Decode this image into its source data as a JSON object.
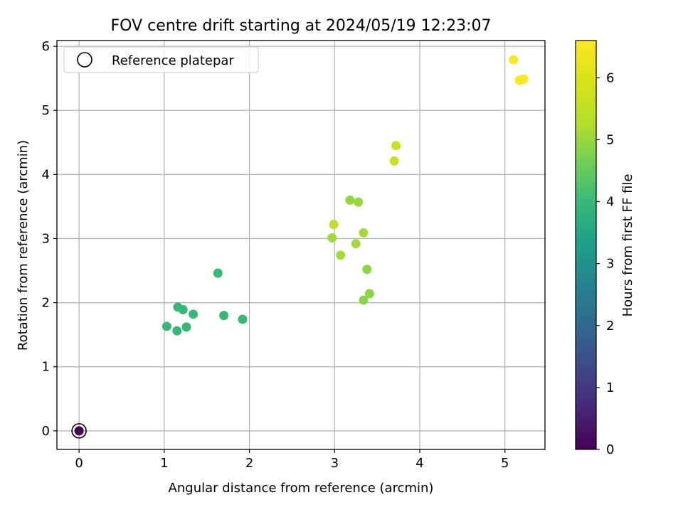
{
  "chart_data": {
    "type": "scatter",
    "title": "FOV centre drift starting at 2024/05/19 12:23:07",
    "xlabel": "Angular distance from reference (arcmin)",
    "ylabel": "Rotation from reference (arcmin)",
    "xlim": [
      -0.26,
      5.47
    ],
    "ylim": [
      -0.29,
      6.09
    ],
    "xticks": [
      0,
      1,
      2,
      3,
      4,
      5
    ],
    "yticks": [
      0,
      1,
      2,
      3,
      4,
      5,
      6
    ],
    "grid": true,
    "legend": {
      "placement": "top-left",
      "entries": [
        "Reference platepar"
      ]
    },
    "colorbar": {
      "label": "Hours from first FF file",
      "colormap": "viridis",
      "range": [
        0,
        6.6
      ],
      "ticks": [
        0,
        1,
        2,
        3,
        4,
        5,
        6
      ]
    },
    "reference_point": {
      "x": 0,
      "y": 0
    },
    "points": [
      {
        "x": 0.0,
        "y": 0.0,
        "hours": 0.0
      },
      {
        "x": 1.03,
        "y": 1.63,
        "hours": 4.0
      },
      {
        "x": 1.15,
        "y": 1.56,
        "hours": 4.0
      },
      {
        "x": 1.16,
        "y": 1.93,
        "hours": 4.0
      },
      {
        "x": 1.22,
        "y": 1.89,
        "hours": 4.0
      },
      {
        "x": 1.26,
        "y": 1.62,
        "hours": 4.0
      },
      {
        "x": 1.34,
        "y": 1.82,
        "hours": 4.0
      },
      {
        "x": 1.63,
        "y": 2.46,
        "hours": 4.0
      },
      {
        "x": 1.7,
        "y": 1.8,
        "hours": 4.0
      },
      {
        "x": 1.92,
        "y": 1.74,
        "hours": 4.0
      },
      {
        "x": 2.97,
        "y": 3.01,
        "hours": 5.1
      },
      {
        "x": 2.99,
        "y": 3.22,
        "hours": 5.5
      },
      {
        "x": 3.07,
        "y": 2.74,
        "hours": 5.1
      },
      {
        "x": 3.18,
        "y": 3.6,
        "hours": 5.0
      },
      {
        "x": 3.25,
        "y": 2.92,
        "hours": 5.1
      },
      {
        "x": 3.28,
        "y": 3.57,
        "hours": 5.0
      },
      {
        "x": 3.34,
        "y": 3.09,
        "hours": 5.1
      },
      {
        "x": 3.34,
        "y": 2.04,
        "hours": 4.9
      },
      {
        "x": 3.38,
        "y": 2.52,
        "hours": 4.9
      },
      {
        "x": 3.41,
        "y": 2.14,
        "hours": 4.9
      },
      {
        "x": 3.7,
        "y": 4.21,
        "hours": 5.7
      },
      {
        "x": 3.72,
        "y": 4.45,
        "hours": 5.7
      },
      {
        "x": 5.1,
        "y": 5.79,
        "hours": 6.6
      },
      {
        "x": 5.17,
        "y": 5.47,
        "hours": 6.6
      },
      {
        "x": 5.2,
        "y": 5.48,
        "hours": 6.6
      },
      {
        "x": 5.22,
        "y": 5.49,
        "hours": 6.6
      }
    ]
  }
}
